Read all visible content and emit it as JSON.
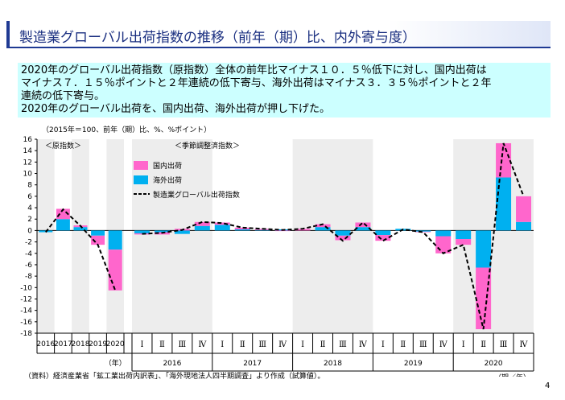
{
  "title": "製造業グローバル出荷指数の推移（前年（期）比、内外寄与度）",
  "summary": [
    "2020年のグローバル出荷指数（原指数）全体の前年比マイナス１０．５％低下に対し、国内出荷は",
    "マイナス７．１５％ポイントと２年連続の低下寄与、海外出荷はマイナス３．３５％ポイントと２年",
    "連続の低下寄与。",
    "2020年のグローバル出荷を、国内出荷、海外出荷が押し下げた。"
  ],
  "source": "（資料）経済産業省「鉱工業出荷内訳表」、「海外現地法人四半期調査」より作成（試算値）。",
  "page_number": "4",
  "chart_data": {
    "type": "bar",
    "stacked": true,
    "unit_label": "（2015年＝100、前年（期）比、%、%ポイント）",
    "left_panel_label": "＜原指数＞",
    "right_panel_label": "＜季節調整済指数＞",
    "ylim": [
      -18,
      16
    ],
    "yticks": [
      16,
      14,
      12,
      10,
      8,
      6,
      4,
      2,
      0,
      -2,
      -4,
      -6,
      -8,
      -10,
      -12,
      -14,
      -16,
      -18
    ],
    "colors": {
      "domestic": "#ff66cc",
      "overseas": "#00b0f0",
      "line": "#000000",
      "band": "#ededed"
    },
    "annual": {
      "categories": [
        "2016",
        "2017",
        "2018",
        "2019",
        "2020"
      ],
      "x_unit_label": "（年）",
      "domestic": [
        0.0,
        1.8,
        0.3,
        -1.6,
        -7.15
      ],
      "overseas": [
        -0.3,
        2.0,
        0.6,
        -0.9,
        -3.35
      ],
      "total": [
        -0.3,
        3.7,
        0.8,
        -2.5,
        -10.5
      ]
    },
    "quarterly": {
      "quarter_labels": [
        "Ⅰ",
        "Ⅱ",
        "Ⅲ",
        "Ⅳ"
      ],
      "years": [
        "2016",
        "2017",
        "2018",
        "2019",
        "2020"
      ],
      "x_unit_label": "（期／年）",
      "domestic": [
        -0.2,
        -0.4,
        0.3,
        0.7,
        0.4,
        0.3,
        0.2,
        -0.1,
        0.3,
        0.5,
        -0.8,
        0.8,
        -1.0,
        0.0,
        -0.1,
        -3.0,
        -1.0,
        -10.8,
        6.0,
        4.5
      ],
      "overseas": [
        -0.5,
        -0.3,
        -0.6,
        0.8,
        1.0,
        0.2,
        0.1,
        0.2,
        0.0,
        0.6,
        -0.9,
        0.6,
        -0.8,
        0.3,
        -0.2,
        -1.0,
        -1.5,
        -6.5,
        9.3,
        1.5
      ],
      "total": [
        -0.6,
        -0.4,
        0.1,
        1.5,
        1.3,
        0.5,
        0.3,
        0.1,
        0.3,
        1.1,
        -1.8,
        1.4,
        -1.8,
        0.2,
        -0.3,
        -4.0,
        -2.5,
        -17.3,
        15.3,
        6.0
      ]
    },
    "legend": {
      "domestic": "国内出荷",
      "overseas": "海外出荷",
      "total": "製造業グローバル出荷指数"
    },
    "grid": false,
    "legend_position": "top-center"
  }
}
